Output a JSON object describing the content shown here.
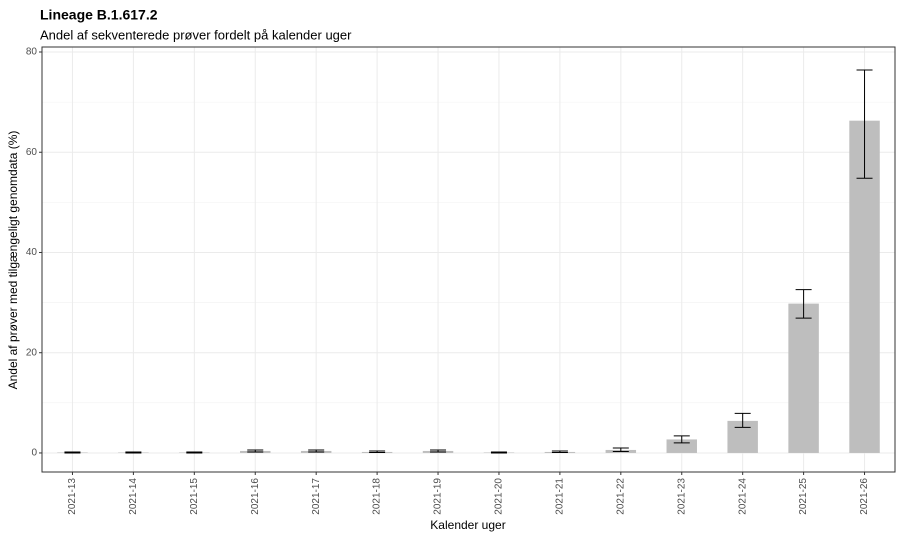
{
  "chart_data": {
    "type": "bar",
    "title": "Lineage B.1.617.2",
    "subtitle": "Andel af sekventerede prøver fordelt på kalender uger",
    "x_label": "Kalender uger",
    "y_label": "Andel af prøver med tilgængeligt genomdata (%)",
    "categories": [
      "2021-13",
      "2021-14",
      "2021-15",
      "2021-16",
      "2021-17",
      "2021-18",
      "2021-19",
      "2021-20",
      "2021-21",
      "2021-22",
      "2021-23",
      "2021-24",
      "2021-25",
      "2021-26"
    ],
    "values": [
      0.1,
      0.1,
      0.1,
      0.4,
      0.4,
      0.2,
      0.4,
      0.1,
      0.2,
      0.6,
      2.7,
      6.4,
      29.8,
      66.3
    ],
    "ci_low": [
      0.0,
      0.0,
      0.0,
      0.2,
      0.2,
      0.1,
      0.2,
      0.0,
      0.1,
      0.3,
      2.0,
      5.1,
      26.9,
      54.8
    ],
    "ci_high": [
      0.2,
      0.2,
      0.2,
      0.6,
      0.6,
      0.4,
      0.6,
      0.2,
      0.4,
      1.0,
      3.4,
      7.9,
      32.6,
      76.4
    ],
    "color": "#bebebe",
    "ylim": [
      -3.8,
      81
    ],
    "yticks": [
      0,
      20,
      40,
      60,
      80
    ],
    "y_minor_ticks": [
      10,
      30,
      50,
      70
    ],
    "grid": true
  }
}
